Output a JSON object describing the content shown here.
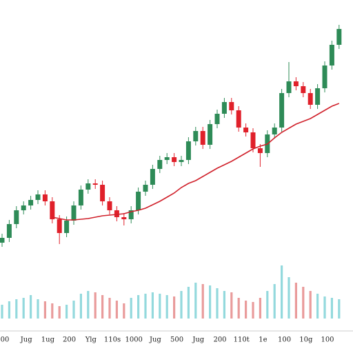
{
  "chart_data": {
    "type": "candlestick",
    "categories": [
      "00",
      null,
      null,
      "Jug",
      null,
      null,
      "1ug",
      null,
      null,
      "200",
      null,
      null,
      "Ylg",
      null,
      null,
      "110s",
      null,
      null,
      "1000",
      null,
      null,
      "Jug",
      null,
      null,
      "500",
      null,
      null,
      "Jug",
      null,
      null,
      "200",
      null,
      null,
      "110t",
      null,
      null,
      "1e",
      null,
      null,
      "100",
      null,
      null,
      "10g",
      null,
      null,
      "100",
      null,
      null
    ],
    "open": [
      160,
      167,
      187,
      207,
      214,
      222,
      230,
      220,
      194,
      174,
      192,
      214,
      237,
      246,
      244,
      220,
      207,
      197,
      194,
      207,
      234,
      244,
      267,
      280,
      284,
      277,
      280,
      307,
      322,
      302,
      332,
      347,
      364,
      352,
      327,
      320,
      297,
      290,
      317,
      327,
      377,
      394,
      387,
      377,
      360,
      384,
      417,
      447
    ],
    "high": [
      173,
      193,
      213,
      220,
      228,
      236,
      236,
      226,
      200,
      198,
      220,
      243,
      252,
      252,
      250,
      226,
      213,
      203,
      213,
      240,
      250,
      273,
      286,
      290,
      290,
      286,
      313,
      328,
      328,
      338,
      353,
      370,
      370,
      358,
      333,
      326,
      303,
      323,
      333,
      383,
      422,
      400,
      393,
      383,
      390,
      423,
      453,
      476
    ],
    "low": [
      154,
      161,
      181,
      201,
      208,
      216,
      214,
      188,
      158,
      168,
      186,
      208,
      231,
      238,
      214,
      201,
      191,
      185,
      188,
      201,
      228,
      238,
      261,
      274,
      271,
      271,
      274,
      301,
      296,
      296,
      326,
      341,
      346,
      321,
      314,
      291,
      270,
      284,
      311,
      321,
      371,
      381,
      371,
      354,
      354,
      378,
      411,
      441
    ],
    "close": [
      167,
      187,
      207,
      214,
      222,
      230,
      220,
      194,
      174,
      192,
      214,
      237,
      246,
      244,
      220,
      207,
      197,
      194,
      207,
      234,
      244,
      267,
      280,
      284,
      277,
      280,
      307,
      322,
      302,
      332,
      347,
      364,
      352,
      327,
      320,
      297,
      290,
      317,
      327,
      377,
      394,
      387,
      377,
      360,
      384,
      417,
      447,
      470
    ],
    "moving_average": [
      null,
      null,
      null,
      null,
      null,
      null,
      null,
      197,
      195,
      193,
      193,
      194,
      195,
      197,
      199,
      200,
      201,
      202,
      205,
      207,
      210,
      215,
      220,
      226,
      232,
      240,
      246,
      250,
      256,
      262,
      268,
      273,
      278,
      284,
      290,
      296,
      300,
      303,
      312,
      320,
      326,
      332,
      336,
      340,
      346,
      352,
      358,
      362
    ],
    "volume": [
      20,
      25,
      28,
      30,
      34,
      28,
      25,
      22,
      18,
      20,
      26,
      36,
      40,
      38,
      34,
      30,
      26,
      22,
      30,
      34,
      36,
      38,
      36,
      34,
      32,
      40,
      46,
      52,
      50,
      48,
      44,
      40,
      38,
      30,
      26,
      24,
      30,
      40,
      50,
      77,
      60,
      52,
      46,
      40,
      36,
      32,
      30,
      28
    ],
    "ylim": [
      0,
      512
    ],
    "volume_lim": [
      0,
      100
    ],
    "up_color": "#2e8b57",
    "down_color": "#e0202a",
    "up_volume_color": "#93d9dd",
    "down_volume_color": "#e99b9b",
    "ma_color": "#d0202a"
  }
}
